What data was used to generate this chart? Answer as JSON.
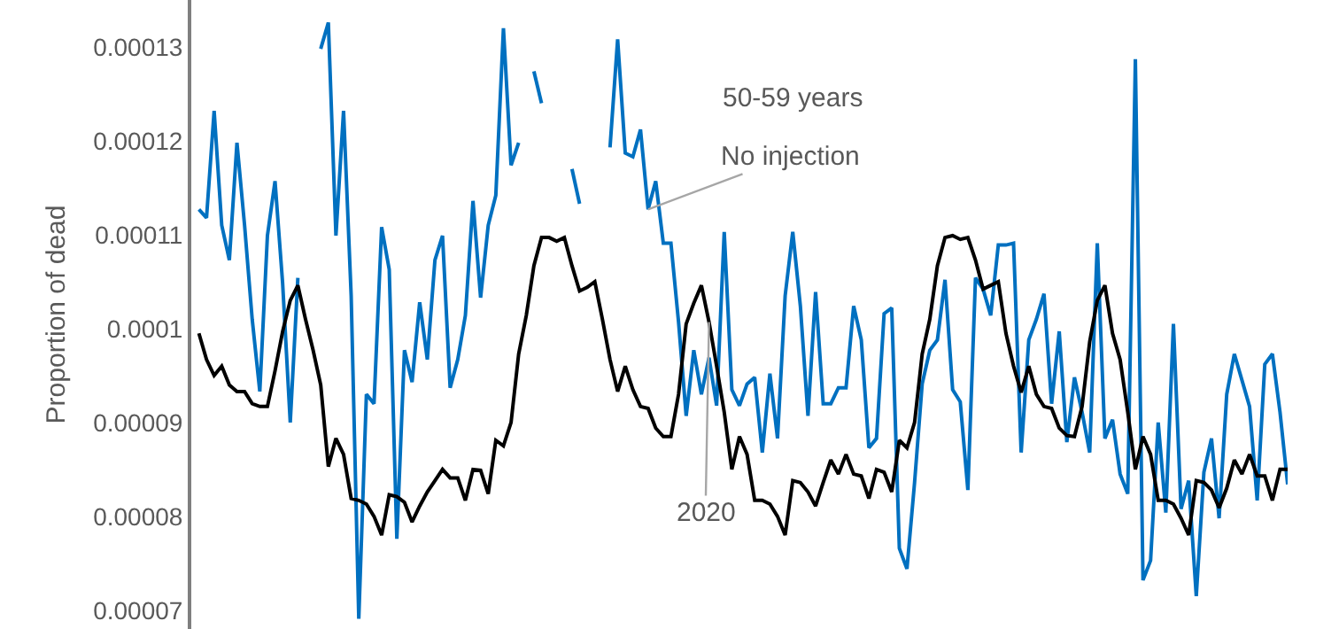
{
  "chart_data": {
    "type": "line",
    "ylabel": "Proportion of dead",
    "ylim": [
      6.8e-05,
      0.000135
    ],
    "yticks": [
      {
        "value": 7e-05,
        "label": "0.00007"
      },
      {
        "value": 8e-05,
        "label": "0.00008"
      },
      {
        "value": 9e-05,
        "label": "0.00009"
      },
      0.0001,
      0.00011,
      0.00012,
      0.00013
    ],
    "grid": false,
    "legend": false,
    "marker": "none",
    "line_style": "solid",
    "tick_labels": "y",
    "annotations": [
      "50-59 years"
    ],
    "categories": [
      null,
      null,
      null,
      null,
      null,
      null,
      null,
      null,
      null,
      null,
      null,
      null,
      null,
      null,
      null,
      null,
      null,
      null,
      null,
      null,
      null,
      null,
      null,
      null,
      null,
      null,
      null,
      null,
      null,
      null,
      null,
      null,
      null,
      null,
      null,
      null,
      null,
      null,
      null,
      null,
      null,
      null,
      null,
      null,
      null,
      null,
      null,
      null,
      null,
      null,
      null,
      null,
      null,
      null,
      null,
      null,
      null,
      null,
      null,
      null,
      null,
      null,
      null,
      null,
      null,
      null,
      null,
      null,
      null,
      null,
      null,
      null,
      null,
      null,
      null,
      null,
      null,
      null,
      null,
      null,
      null,
      null,
      null,
      null,
      null,
      null,
      null,
      null,
      null,
      null,
      null,
      null,
      null,
      null,
      null,
      null,
      null,
      null,
      null,
      null,
      null,
      null,
      null,
      null,
      null,
      null,
      null,
      null,
      null,
      null,
      null,
      null,
      null,
      null,
      null,
      null,
      null,
      null,
      null,
      null,
      null,
      null,
      null,
      null,
      null,
      null,
      null,
      null,
      null,
      null,
      null,
      null,
      null,
      null,
      null,
      null,
      null,
      null,
      null,
      null,
      null,
      null,
      null,
      null
    ],
    "series": [
      {
        "name": "No injection",
        "color": "#0070c0",
        "values": [
          0.0001127,
          0.0001118,
          0.0001232,
          0.000111,
          0.0001073,
          0.0001198,
          0.000111,
          0.000101,
          9.33e-05,
          0.0001099,
          0.0001157,
          0.0001048,
          9e-05,
          0.0001054,
          null,
          null,
          0.0001298,
          0.0001326,
          0.0001099,
          0.0001232,
          0.0001035,
          6.91e-05,
          9.3e-05,
          9.2e-05,
          0.0001108,
          0.0001063,
          7.76e-05,
          9.77e-05,
          9.43e-05,
          0.0001028,
          9.67e-05,
          0.0001073,
          0.0001099,
          9.37e-05,
          9.67e-05,
          0.0001014,
          0.0001136,
          0.0001033,
          0.000111,
          0.0001142,
          0.000132,
          0.0001174,
          0.0001198,
          null,
          0.0001274,
          0.000124,
          null,
          null,
          null,
          0.000117,
          0.0001133,
          null,
          null,
          null,
          0.0001193,
          0.0001308,
          0.0001187,
          0.0001183,
          0.0001212,
          0.0001127,
          0.0001157,
          0.0001091,
          0.0001091,
          0.0001007,
          9.07e-05,
          9.77e-05,
          9.3e-05,
          9.69e-05,
          9.18e-05,
          0.0001103,
          9.35e-05,
          9.18e-05,
          9.41e-05,
          9.48e-05,
          8.68e-05,
          9.52e-05,
          8.83e-05,
          0.0001035,
          0.0001103,
          0.0001024,
          9.07e-05,
          0.0001039,
          9.2e-05,
          9.2e-05,
          9.37e-05,
          9.37e-05,
          0.0001024,
          9.88e-05,
          8.73e-05,
          8.83e-05,
          0.0001016,
          0.0001022,
          7.66e-05,
          7.44e-05,
          8.36e-05,
          9.41e-05,
          9.77e-05,
          9.88e-05,
          0.0001052,
          9.35e-05,
          9.22e-05,
          8.28e-05,
          0.0001054,
          0.0001042,
          0.0001014,
          0.0001089,
          0.0001089,
          0.0001091,
          8.68e-05,
          9.88e-05,
          0.000101,
          0.0001037,
          9.2e-05,
          9.97e-05,
          8.79e-05,
          9.48e-05,
          9.11e-05,
          8.68e-05,
          0.0001091,
          8.83e-05,
          9.03e-05,
          8.45e-05,
          8.24e-05,
          0.0001287,
          7.32e-05,
          7.53e-05,
          9e-05,
          8.04e-05,
          0.0001005,
          8.08e-05,
          8.38e-05,
          7.15e-05,
          8.47e-05,
          8.83e-05,
          7.98e-05,
          9.3e-05,
          9.73e-05,
          9.45e-05,
          9.17e-05,
          8.17e-05,
          9.62e-05,
          9.73e-05,
          9.11e-05,
          8.34e-05
        ]
      },
      {
        "name": "2020",
        "color": "#000000",
        "values": [
          9.95e-05,
          9.67e-05,
          9.5e-05,
          9.6e-05,
          9.4e-05,
          9.33e-05,
          9.33e-05,
          9.2e-05,
          9.17e-05,
          9.17e-05,
          9.55e-05,
          9.97e-05,
          0.000103,
          0.0001046,
          0.000101,
          9.77e-05,
          9.4e-05,
          8.53e-05,
          8.83e-05,
          8.66e-05,
          8.19e-05,
          8.17e-05,
          8.13e-05,
          8e-05,
          7.8e-05,
          8.23e-05,
          8.21e-05,
          8.15e-05,
          7.94e-05,
          8.11e-05,
          8.26e-05,
          8.38e-05,
          8.5e-05,
          8.41e-05,
          8.41e-05,
          8.17e-05,
          8.5e-05,
          8.49e-05,
          8.24e-05,
          8.81e-05,
          8.75e-05,
          9e-05,
          9.73e-05,
          0.0001014,
          0.0001067,
          0.0001097,
          0.0001097,
          0.0001093,
          0.0001097,
          0.0001067,
          0.000104,
          0.0001044,
          0.000105,
          0.000101,
          9.67e-05,
          9.33e-05,
          9.6e-05,
          9.35e-05,
          9.17e-05,
          9.15e-05,
          8.94e-05,
          8.85e-05,
          8.85e-05,
          9.3e-05,
          0.0001005,
          0.0001027,
          0.0001046,
          0.0001007,
          9.6e-05,
          9.11e-05,
          8.5e-05,
          8.85e-05,
          8.66e-05,
          8.17e-05,
          8.17e-05,
          8.13e-05,
          8e-05,
          7.8e-05,
          8.38e-05,
          8.36e-05,
          8.26e-05,
          8.11e-05,
          8.36e-05,
          8.6e-05,
          8.45e-05,
          8.66e-05,
          8.45e-05,
          8.43e-05,
          8.19e-05,
          8.5e-05,
          8.47e-05,
          8.26e-05,
          8.81e-05,
          8.73e-05,
          9e-05,
          9.73e-05,
          0.000101,
          0.0001067,
          0.0001097,
          0.0001099,
          0.0001095,
          0.0001097,
          0.0001073,
          0.0001042,
          0.0001046,
          0.000105,
          9.95e-05,
          9.6e-05,
          9.32e-05,
          9.6e-05,
          9.3e-05,
          9.17e-05,
          9.15e-05,
          8.94e-05,
          8.86e-05,
          8.85e-05,
          9.17e-05,
          9.86e-05,
          0.000103,
          0.0001046,
          9.95e-05,
          9.67e-05,
          9.11e-05,
          8.5e-05,
          8.85e-05,
          8.66e-05,
          8.17e-05,
          8.17e-05,
          8.13e-05,
          7.98e-05,
          7.8e-05,
          8.38e-05,
          8.36e-05,
          8.28e-05,
          8.09e-05,
          8.3e-05,
          8.6e-05,
          8.45e-05,
          8.66e-05,
          8.43e-05,
          8.43e-05,
          8.17e-05,
          8.5e-05,
          8.5e-05
        ]
      }
    ]
  }
}
